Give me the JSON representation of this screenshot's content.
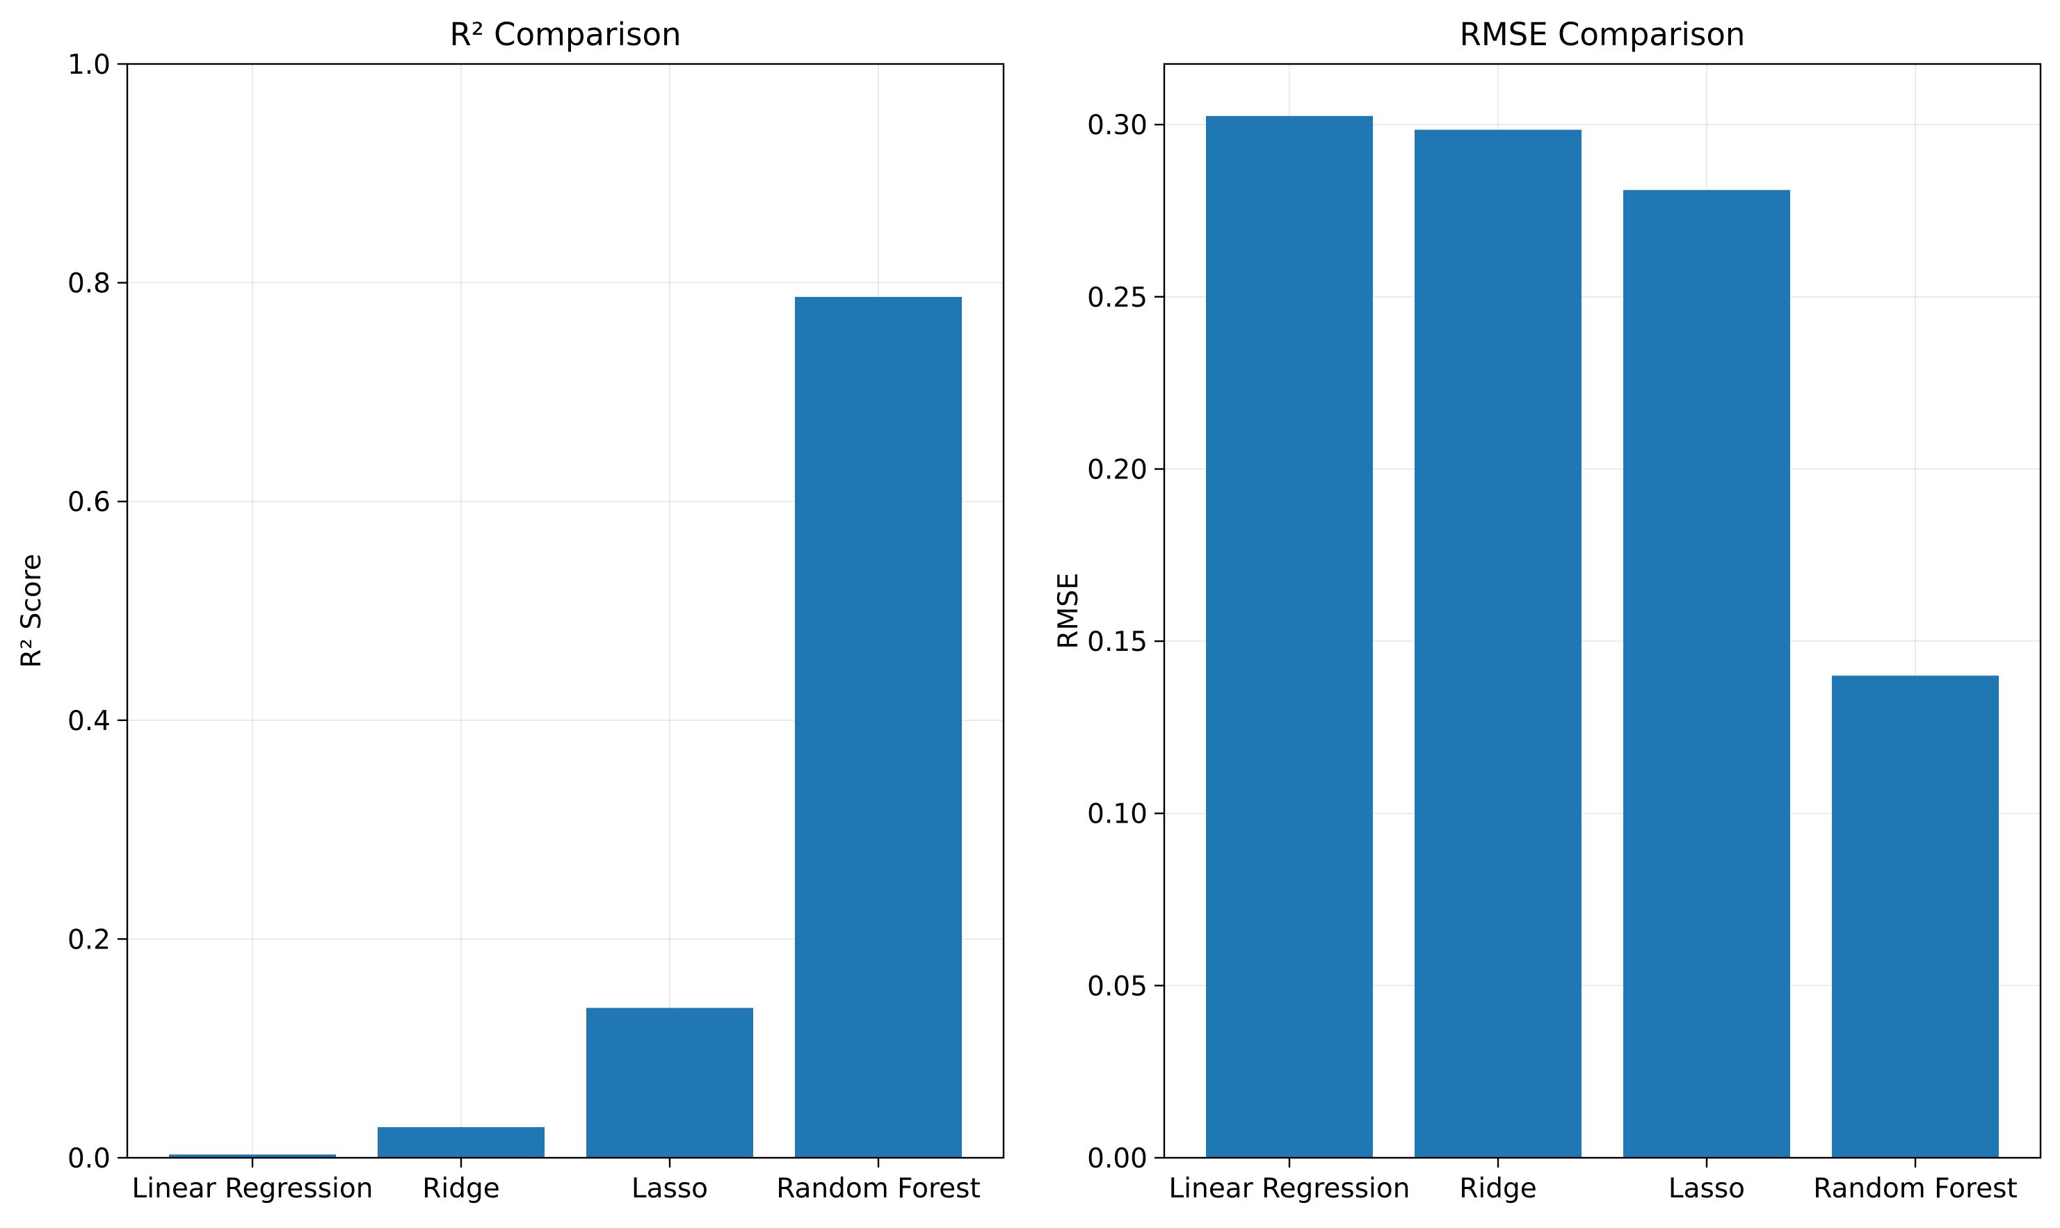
{
  "chart_data": [
    {
      "type": "bar",
      "title": "R² Comparison",
      "xlabel": "",
      "ylabel": "R² Score",
      "categories": [
        "Linear Regression",
        "Ridge",
        "Lasso",
        "Random Forest"
      ],
      "values": [
        0.003,
        0.028,
        0.137,
        0.787
      ],
      "ylim": [
        0,
        1.0
      ],
      "yticks": [
        "0.0",
        "0.2",
        "0.4",
        "0.6",
        "0.8",
        "1.0"
      ],
      "grid": true,
      "bar_color": "#1f77b4"
    },
    {
      "type": "bar",
      "title": "RMSE Comparison",
      "xlabel": "",
      "ylabel": "RMSE",
      "categories": [
        "Linear Regression",
        "Ridge",
        "Lasso",
        "Random Forest"
      ],
      "values": [
        0.3025,
        0.2985,
        0.281,
        0.14
      ],
      "ylim": [
        0,
        0.3176
      ],
      "yticks": [
        "0.00",
        "0.05",
        "0.10",
        "0.15",
        "0.20",
        "0.25",
        "0.30"
      ],
      "grid": true,
      "bar_color": "#1f77b4"
    }
  ]
}
